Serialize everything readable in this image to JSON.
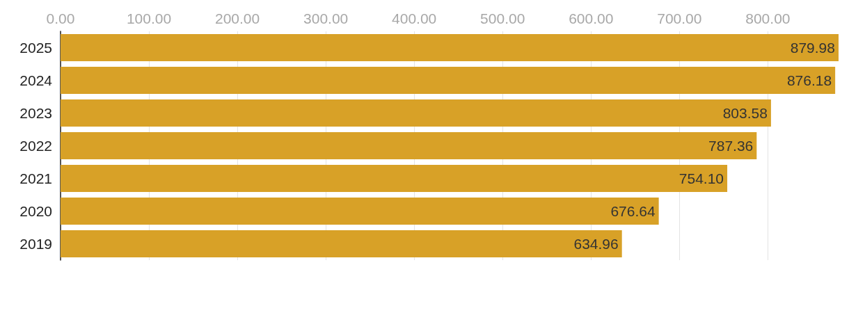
{
  "chart_data": {
    "type": "bar",
    "orientation": "horizontal",
    "categories": [
      "2025",
      "2024",
      "2023",
      "2022",
      "2021",
      "2020",
      "2019"
    ],
    "values": [
      879.98,
      876.18,
      803.58,
      787.36,
      754.1,
      676.64,
      634.96
    ],
    "value_labels": [
      "879.98",
      "876.18",
      "803.58",
      "787.36",
      "754.10",
      "676.64",
      "634.96"
    ],
    "color": "#d8a127",
    "xlim": [
      0,
      880
    ],
    "xticks": [
      {
        "value": 0,
        "label": "0.00"
      },
      {
        "value": 100,
        "label": "100.00"
      },
      {
        "value": 200,
        "label": "200.00"
      },
      {
        "value": 300,
        "label": "300.00"
      },
      {
        "value": 400,
        "label": "400.00"
      },
      {
        "value": 500,
        "label": "500.00"
      },
      {
        "value": 600,
        "label": "600.00"
      },
      {
        "value": 700,
        "label": "700.00"
      },
      {
        "value": 800,
        "label": "800.00"
      }
    ],
    "grid": "x"
  }
}
